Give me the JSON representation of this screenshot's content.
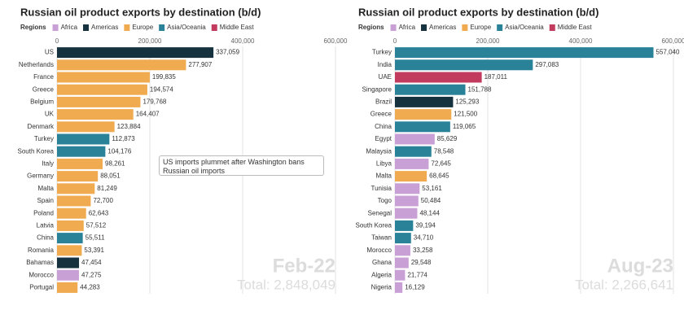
{
  "chart_data": [
    {
      "type": "bar",
      "orientation": "horizontal",
      "title": "Russian oil product exports by destination (b/d)",
      "legend": {
        "title": "Regions",
        "items": [
          {
            "name": "Africa",
            "color": "#c9a0d6"
          },
          {
            "name": "Americas",
            "color": "#17323f"
          },
          {
            "name": "Europe",
            "color": "#f0aa4f"
          },
          {
            "name": "Asia/Oceania",
            "color": "#2a8299"
          },
          {
            "name": "Middle East",
            "color": "#c23b5e"
          }
        ]
      },
      "categories": [
        "US",
        "Netherlands",
        "France",
        "Greece",
        "Belgium",
        "UK",
        "Denmark",
        "Turkey",
        "South Korea",
        "Italy",
        "Germany",
        "Malta",
        "Spain",
        "Poland",
        "Latvia",
        "China",
        "Romania",
        "Bahamas",
        "Morocco",
        "Portugal"
      ],
      "values": [
        337059,
        277907,
        199835,
        194574,
        179768,
        164407,
        123884,
        112873,
        104176,
        98261,
        88051,
        81249,
        72700,
        62643,
        57512,
        55511,
        53391,
        47454,
        47275,
        44283
      ],
      "value_labels": [
        "337,059",
        "277,907",
        "199,835",
        "194,574",
        "179,768",
        "164,407",
        "123,884",
        "112,873",
        "104,176",
        "98,261",
        "88,051",
        "81,249",
        "72,700",
        "62,643",
        "57,512",
        "55,511",
        "53,391",
        "47,454",
        "47,275",
        "44,283"
      ],
      "colors": [
        "#17323f",
        "#f0aa4f",
        "#f0aa4f",
        "#f0aa4f",
        "#f0aa4f",
        "#f0aa4f",
        "#f0aa4f",
        "#2a8299",
        "#2a8299",
        "#f0aa4f",
        "#f0aa4f",
        "#f0aa4f",
        "#f0aa4f",
        "#f0aa4f",
        "#f0aa4f",
        "#2a8299",
        "#f0aa4f",
        "#17323f",
        "#c9a0d6",
        "#f0aa4f"
      ],
      "xlim": [
        0,
        600000
      ],
      "xticks": [
        0,
        {
          "value": 200000,
          "label": "200,000"
        },
        {
          "value": 400000,
          "label": "400,000"
        },
        {
          "value": 600000,
          "label": "600,000"
        }
      ],
      "grid": true,
      "annotation": "US imports plummet after Washington bans Russian oil imports",
      "period": "Feb-22",
      "total": "Total: 2,848,049"
    },
    {
      "type": "bar",
      "orientation": "horizontal",
      "title": "Russian oil product exports by destination (b/d)",
      "legend": {
        "title": "Regions",
        "items": [
          {
            "name": "Africa",
            "color": "#c9a0d6"
          },
          {
            "name": "Americas",
            "color": "#17323f"
          },
          {
            "name": "Europe",
            "color": "#f0aa4f"
          },
          {
            "name": "Asia/Oceania",
            "color": "#2a8299"
          },
          {
            "name": "Middle East",
            "color": "#c23b5e"
          }
        ]
      },
      "categories": [
        "Turkey",
        "India",
        "UAE",
        "Singapore",
        "Brazil",
        "Greece",
        "China",
        "Egypt",
        "Malaysia",
        "Libya",
        "Malta",
        "Tunisia",
        "Togo",
        "Senegal",
        "South Korea",
        "Taiwan",
        "Morocco",
        "Ghana",
        "Algeria",
        "Nigeria"
      ],
      "values": [
        557040,
        297083,
        187011,
        151788,
        125293,
        121500,
        119065,
        85629,
        78548,
        72645,
        68645,
        53161,
        50484,
        48144,
        39194,
        34710,
        33258,
        29548,
        21774,
        16129
      ],
      "value_labels": [
        "557,040",
        "297,083",
        "187,011",
        "151,788",
        "125,293",
        "121,500",
        "119,065",
        "85,629",
        "78,548",
        "72,645",
        "68,645",
        "53,161",
        "50,484",
        "48,144",
        "39,194",
        "34,710",
        "33,258",
        "29,548",
        "21,774",
        "16,129"
      ],
      "colors": [
        "#2a8299",
        "#2a8299",
        "#c23b5e",
        "#2a8299",
        "#17323f",
        "#f0aa4f",
        "#2a8299",
        "#c9a0d6",
        "#2a8299",
        "#c9a0d6",
        "#f0aa4f",
        "#c9a0d6",
        "#c9a0d6",
        "#c9a0d6",
        "#2a8299",
        "#2a8299",
        "#c9a0d6",
        "#c9a0d6",
        "#c9a0d6",
        "#c9a0d6"
      ],
      "xlim": [
        0,
        600000
      ],
      "xticks": [
        0,
        {
          "value": 200000,
          "label": "200,000"
        },
        {
          "value": 400000,
          "label": "400,000"
        },
        {
          "value": 600000,
          "label": "600,000"
        }
      ],
      "grid": true,
      "period": "Aug-23",
      "total": "Total: 2,266,641"
    }
  ]
}
